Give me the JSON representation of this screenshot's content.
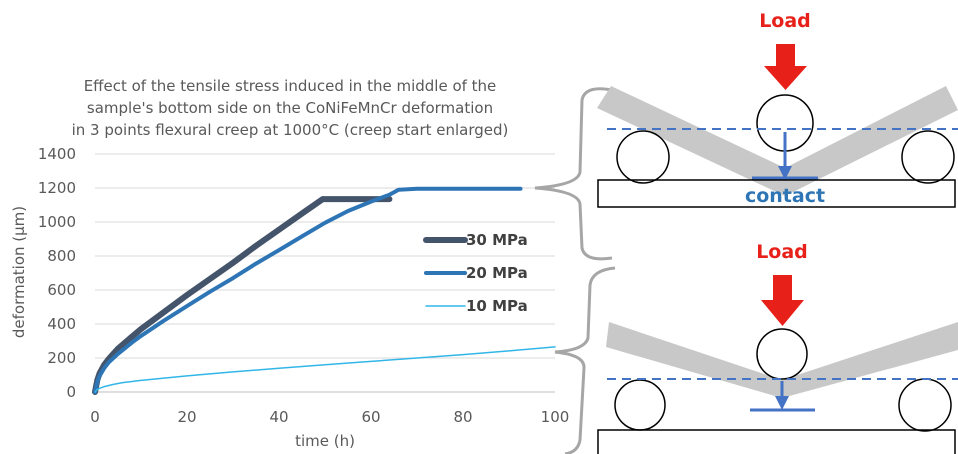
{
  "chart_data": {
    "type": "line",
    "title_lines": [
      "Effect of the tensile stress induced in the middle of the",
      "sample's bottom side on the CoNiFeMnCr deformation",
      "in 3 points flexural creep at 1000°C (creep start enlarged)"
    ],
    "xlabel": "time (h)",
    "ylabel": "deformation (µm)",
    "xlim": [
      0,
      100
    ],
    "ylim": [
      0,
      1400
    ],
    "xticks": [
      0,
      20,
      40,
      60,
      80,
      100
    ],
    "yticks": [
      0,
      200,
      400,
      600,
      800,
      1000,
      1200,
      1400
    ],
    "grid": "horizontal",
    "legend_position": "right",
    "series": [
      {
        "name": "30 MPa",
        "color": "#44546A",
        "width": 6,
        "points": [
          [
            0,
            0
          ],
          [
            0.5,
            70
          ],
          [
            1,
            110
          ],
          [
            2,
            160
          ],
          [
            3,
            195
          ],
          [
            5,
            255
          ],
          [
            8,
            325
          ],
          [
            10,
            370
          ],
          [
            15,
            470
          ],
          [
            20,
            570
          ],
          [
            25,
            665
          ],
          [
            30,
            760
          ],
          [
            35,
            860
          ],
          [
            40,
            955
          ],
          [
            45,
            1050
          ],
          [
            49.5,
            1135
          ],
          [
            55,
            1135
          ],
          [
            60,
            1135
          ],
          [
            64,
            1135
          ]
        ]
      },
      {
        "name": "20 MPa",
        "color": "#2E75B6",
        "width": 4,
        "points": [
          [
            0,
            0
          ],
          [
            0.5,
            60
          ],
          [
            1,
            95
          ],
          [
            2,
            140
          ],
          [
            3,
            175
          ],
          [
            5,
            225
          ],
          [
            8,
            290
          ],
          [
            10,
            330
          ],
          [
            15,
            420
          ],
          [
            20,
            505
          ],
          [
            25,
            590
          ],
          [
            30,
            670
          ],
          [
            35,
            755
          ],
          [
            40,
            835
          ],
          [
            45,
            915
          ],
          [
            50,
            995
          ],
          [
            55,
            1065
          ],
          [
            60,
            1120
          ],
          [
            64,
            1160
          ],
          [
            66,
            1190
          ],
          [
            70,
            1195
          ],
          [
            80,
            1195
          ],
          [
            90,
            1195
          ],
          [
            92.5,
            1195
          ]
        ]
      },
      {
        "name": "10 MPa",
        "color": "#32B6E8",
        "width": 1.5,
        "points": [
          [
            0,
            0
          ],
          [
            0.5,
            15
          ],
          [
            1,
            22
          ],
          [
            2,
            32
          ],
          [
            4,
            45
          ],
          [
            6,
            55
          ],
          [
            10,
            68
          ],
          [
            20,
            95
          ],
          [
            30,
            118
          ],
          [
            40,
            140
          ],
          [
            50,
            160
          ],
          [
            60,
            180
          ],
          [
            70,
            200
          ],
          [
            80,
            220
          ],
          [
            90,
            242
          ],
          [
            100,
            265
          ]
        ]
      }
    ]
  },
  "diagram": {
    "top_load_label": "Load",
    "contact_label": "contact",
    "bottom_load_label": "Load",
    "colors": {
      "load_arrow": "#E8201A",
      "beam": "#C8C8C8",
      "dashed_line": "#4472C4",
      "deflection_arrow": "#4472C4",
      "contact_text": "#2E75B6",
      "brace": "#A6A6A6"
    }
  }
}
